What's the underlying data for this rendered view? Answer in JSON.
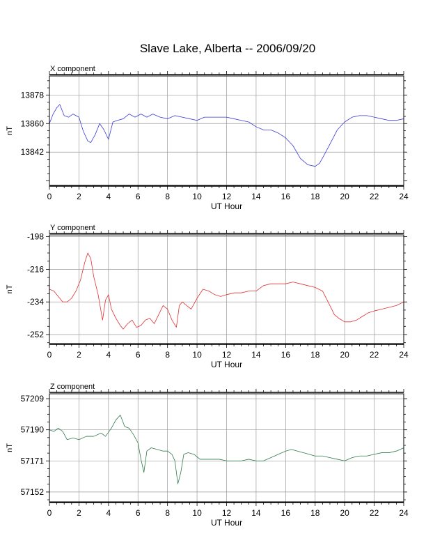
{
  "page": {
    "title": "Slave Lake, Alberta -- 2006/09/20"
  },
  "colors": {
    "x_series": "#3a3ad8",
    "y_series": "#e03030",
    "z_series": "#2f7a4a",
    "grid": "#9a9a9a",
    "axis": "#000000"
  },
  "chart_data": [
    {
      "type": "line",
      "panel_title": "X component",
      "xlabel": "UT Hour",
      "ylabel": "nT",
      "xlim": [
        0,
        24
      ],
      "xticks": [
        0,
        2,
        4,
        6,
        8,
        10,
        12,
        14,
        16,
        18,
        20,
        22,
        24
      ],
      "ylim": [
        13821,
        13890
      ],
      "yticks": [
        13842,
        13860,
        13878
      ],
      "grid": true,
      "series": [
        {
          "x": [
            0,
            0.25,
            0.5,
            0.7,
            1.0,
            1.3,
            1.6,
            2.0,
            2.3,
            2.6,
            2.8,
            3.1,
            3.4,
            3.7,
            4.0,
            4.3,
            4.6,
            5.0,
            5.4,
            5.8,
            6.2,
            6.6,
            7.0,
            7.5,
            8.0,
            8.5,
            9.0,
            9.5,
            10.0,
            10.5,
            11.0,
            11.5,
            12.0,
            12.5,
            13.0,
            13.5,
            14.0,
            14.5,
            15.0,
            15.5,
            16.0,
            16.5,
            17.0,
            17.5,
            18.0,
            18.3,
            18.6,
            19.0,
            19.5,
            20.0,
            20.5,
            21.0,
            21.5,
            22.0,
            22.5,
            23.0,
            23.5,
            24.0
          ],
          "values": [
            13860,
            13866,
            13870,
            13872,
            13865,
            13864,
            13866,
            13864,
            13855,
            13849,
            13848,
            13853,
            13860,
            13856,
            13850,
            13861,
            13862,
            13863,
            13866,
            13864,
            13866,
            13864,
            13866,
            13864,
            13863,
            13865,
            13864,
            13863,
            13862,
            13864,
            13864,
            13864,
            13864,
            13863,
            13862,
            13861,
            13858,
            13856,
            13856,
            13854,
            13851,
            13846,
            13838,
            13834,
            13833,
            13835,
            13840,
            13847,
            13856,
            13861,
            13864,
            13865,
            13865,
            13864,
            13863,
            13862,
            13862,
            13863
          ]
        }
      ]
    },
    {
      "type": "line",
      "panel_title": "Y component",
      "xlabel": "UT Hour",
      "ylabel": "nT",
      "xlim": [
        0,
        24
      ],
      "xticks": [
        0,
        2,
        4,
        6,
        8,
        10,
        12,
        14,
        16,
        18,
        20,
        22,
        24
      ],
      "ylim": [
        -257,
        -197
      ],
      "yticks": [
        -198,
        -216,
        -234,
        -252
      ],
      "grid": true,
      "series": [
        {
          "x": [
            0,
            0.3,
            0.6,
            0.9,
            1.2,
            1.5,
            1.8,
            2.1,
            2.4,
            2.6,
            2.8,
            3.0,
            3.3,
            3.6,
            3.8,
            4.0,
            4.2,
            4.5,
            4.8,
            5.0,
            5.3,
            5.6,
            5.9,
            6.2,
            6.5,
            6.8,
            7.1,
            7.4,
            7.7,
            8.0,
            8.3,
            8.6,
            8.8,
            9.0,
            9.3,
            9.6,
            10.0,
            10.4,
            10.8,
            11.2,
            11.6,
            12.0,
            12.5,
            13.0,
            13.5,
            14.0,
            14.5,
            15.0,
            15.5,
            16.0,
            16.5,
            17.0,
            17.5,
            18.0,
            18.5,
            19.0,
            19.3,
            19.6,
            20.0,
            20.4,
            20.8,
            21.2,
            21.6,
            22.0,
            22.5,
            23.0,
            23.5,
            24.0
          ],
          "values": [
            -227,
            -228,
            -231,
            -234,
            -234,
            -232,
            -228,
            -222,
            -212,
            -207,
            -210,
            -220,
            -230,
            -244,
            -233,
            -230,
            -238,
            -243,
            -247,
            -249,
            -246,
            -244,
            -248,
            -247,
            -244,
            -243,
            -246,
            -241,
            -236,
            -238,
            -244,
            -248,
            -236,
            -234,
            -236,
            -238,
            -232,
            -227,
            -228,
            -230,
            -231,
            -230,
            -229,
            -229,
            -228,
            -228,
            -225,
            -224,
            -224,
            -224,
            -223,
            -224,
            -225,
            -226,
            -228,
            -236,
            -241,
            -243,
            -245,
            -245,
            -244,
            -242,
            -240,
            -239,
            -238,
            -237,
            -236,
            -234
          ]
        }
      ]
    },
    {
      "type": "line",
      "panel_title": "Z component",
      "xlabel": "UT Hour",
      "ylabel": "nT",
      "xlim": [
        0,
        24
      ],
      "xticks": [
        0,
        2,
        4,
        6,
        8,
        10,
        12,
        14,
        16,
        18,
        20,
        22,
        24
      ],
      "ylim": [
        57146,
        57212
      ],
      "yticks": [
        57152,
        57171,
        57190,
        57209
      ],
      "grid": true,
      "series": [
        {
          "x": [
            0,
            0.3,
            0.6,
            0.9,
            1.2,
            1.6,
            2.0,
            2.5,
            3.0,
            3.5,
            3.8,
            4.2,
            4.5,
            4.8,
            5.1,
            5.4,
            5.7,
            6.0,
            6.2,
            6.4,
            6.6,
            6.9,
            7.3,
            7.7,
            8.0,
            8.3,
            8.5,
            8.7,
            8.9,
            9.1,
            9.4,
            9.8,
            10.2,
            10.6,
            11.0,
            11.5,
            12.0,
            12.5,
            13.0,
            13.5,
            14.0,
            14.5,
            15.0,
            15.5,
            16.0,
            16.4,
            16.8,
            17.2,
            17.6,
            18.0,
            18.5,
            19.0,
            19.5,
            20.0,
            20.5,
            21.0,
            21.5,
            22.0,
            22.5,
            23.0,
            23.5,
            24.0
          ],
          "values": [
            57190,
            57189,
            57191,
            57189,
            57184,
            57185,
            57184,
            57186,
            57186,
            57188,
            57186,
            57191,
            57196,
            57199,
            57192,
            57191,
            57187,
            57182,
            57172,
            57164,
            57177,
            57179,
            57178,
            57177,
            57177,
            57175,
            57171,
            57157,
            57164,
            57175,
            57176,
            57175,
            57172,
            57172,
            57172,
            57172,
            57171,
            57171,
            57171,
            57172,
            57171,
            57171,
            57173,
            57175,
            57177,
            57178,
            57177,
            57176,
            57175,
            57174,
            57174,
            57173,
            57172,
            57171,
            57173,
            57174,
            57174,
            57175,
            57176,
            57176,
            57177,
            57179
          ]
        }
      ]
    }
  ]
}
